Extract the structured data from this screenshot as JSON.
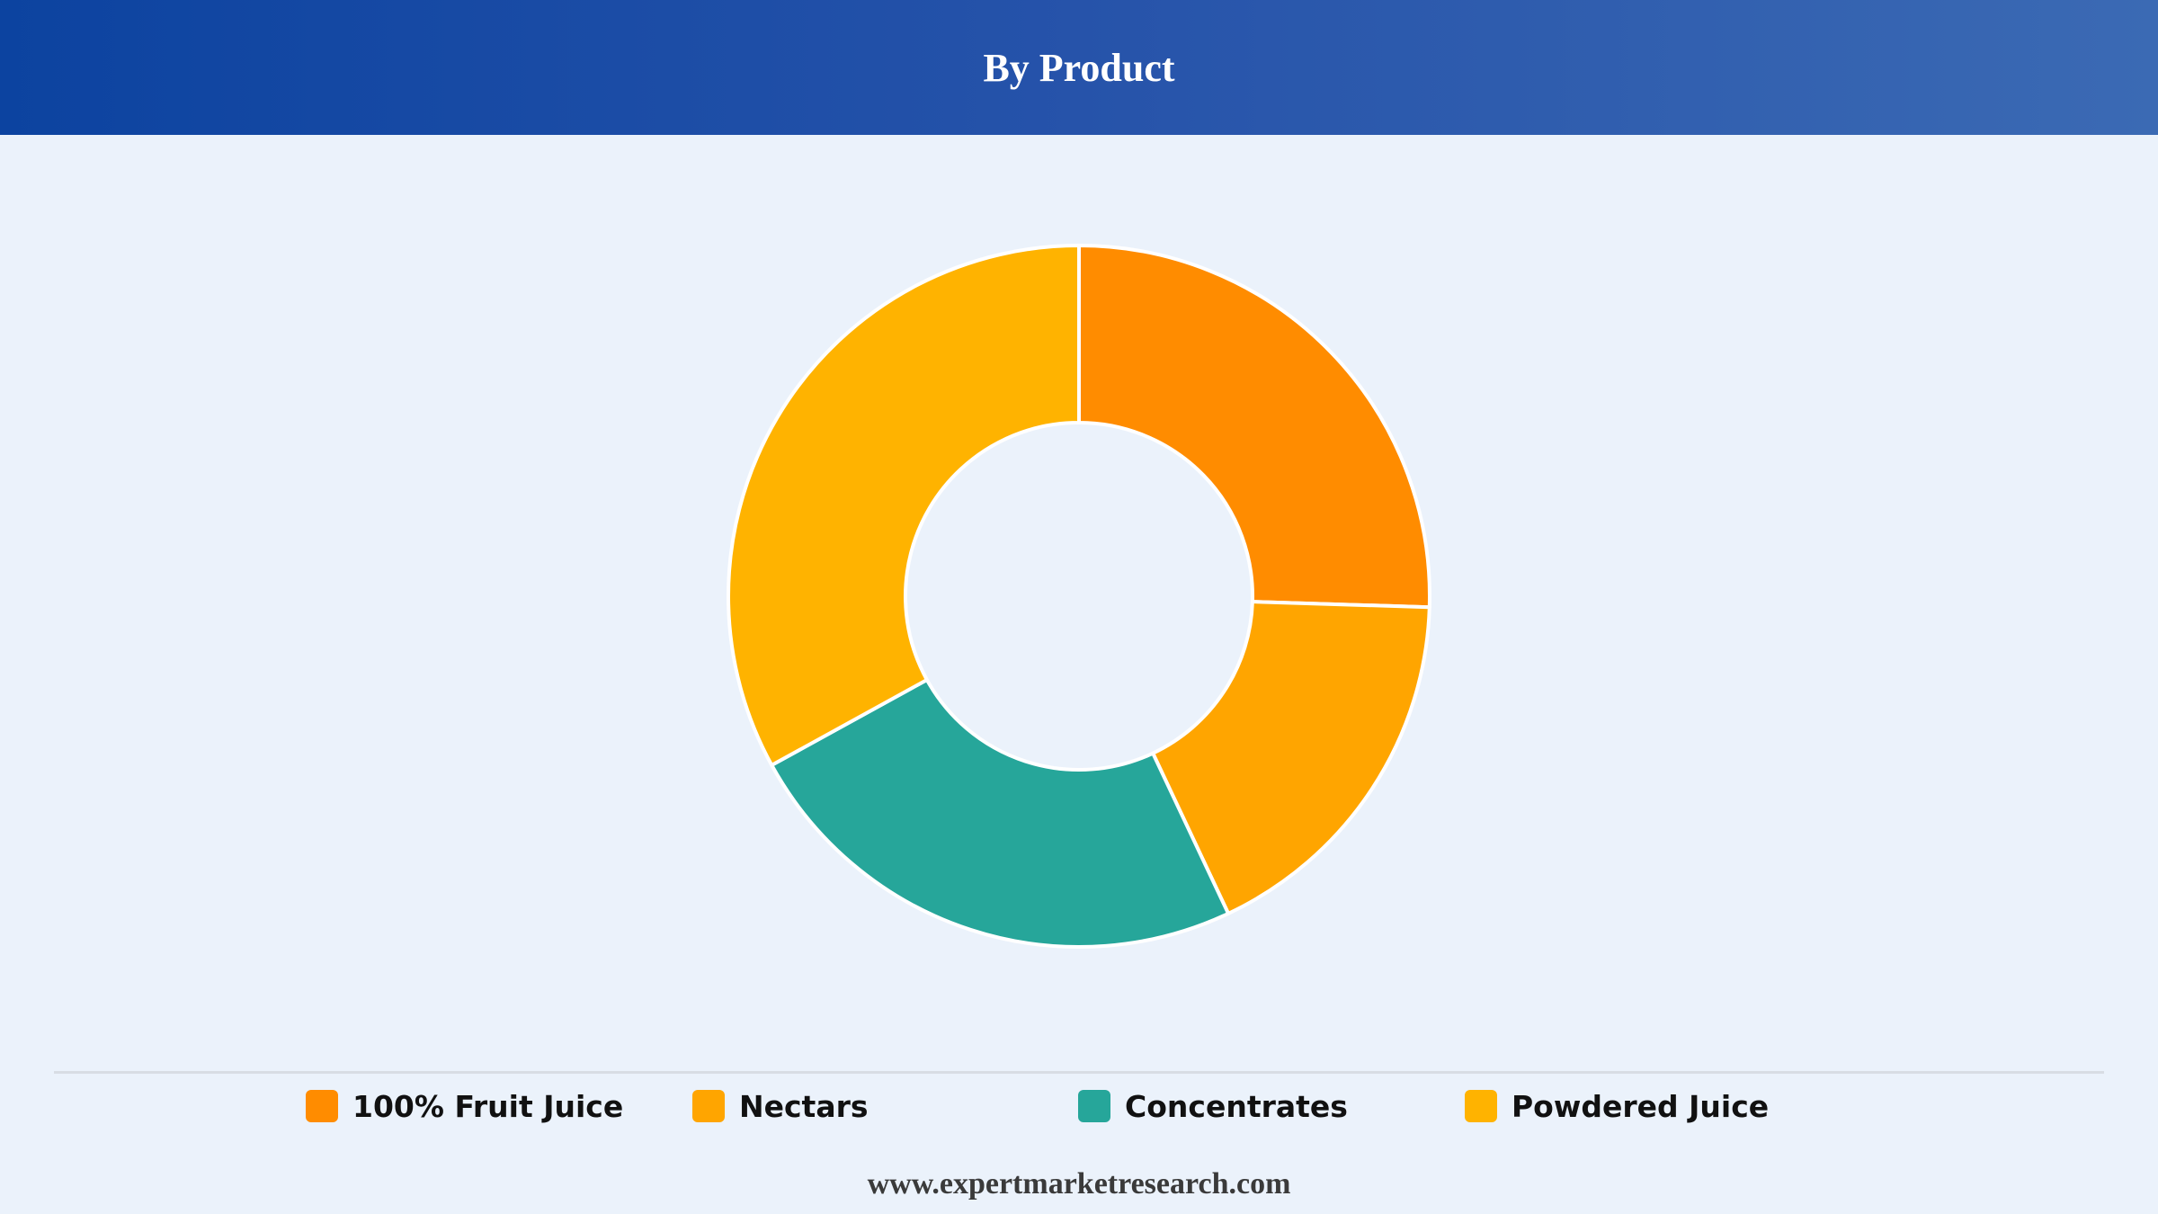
{
  "header": {
    "title": "By Product"
  },
  "chart_data": {
    "type": "pie",
    "title": "By Product",
    "categories": [
      "100% Fruit Juice",
      "Nectars",
      "Concentrates",
      "Powdered Juice"
    ],
    "values": [
      25.5,
      17.5,
      24.0,
      33.0
    ],
    "colors": [
      "#ff8c00",
      "#ffa500",
      "#26a69a",
      "#ffb300"
    ],
    "legend_position": "bottom"
  },
  "legend": {
    "items": [
      {
        "label": "100% Fruit Juice",
        "color": "#ff8c00"
      },
      {
        "label": "Nectars",
        "color": "#ffa500"
      },
      {
        "label": "Concentrates",
        "color": "#26a69a"
      },
      {
        "label": "Powdered Juice",
        "color": "#ffb300"
      }
    ]
  },
  "footer": {
    "source": "www.expertmarketresearch.com"
  }
}
